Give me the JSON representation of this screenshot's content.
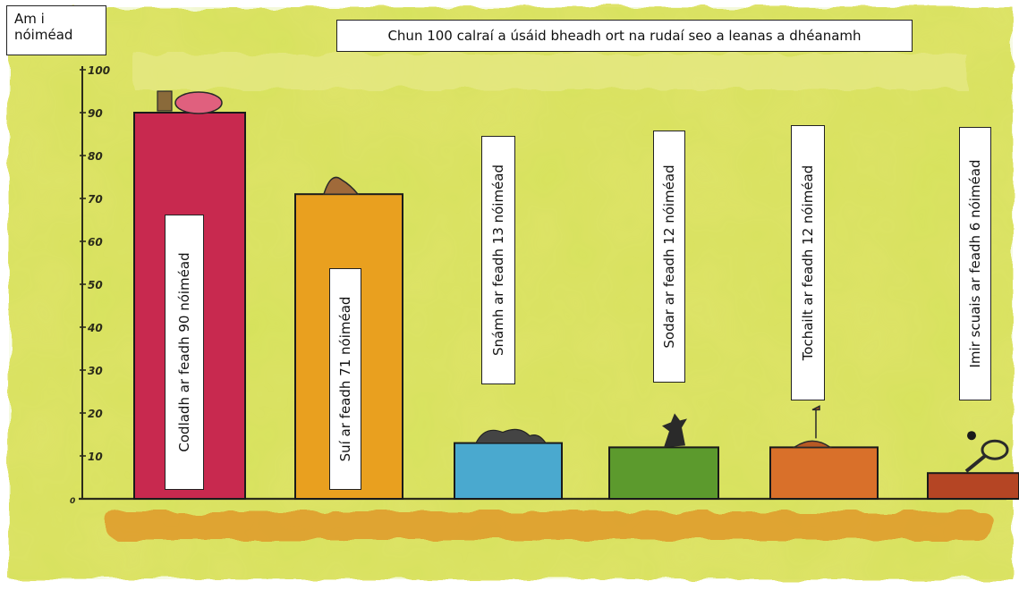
{
  "chart_data": {
    "type": "bar",
    "title": "Chun 100 calraí a úsáid bheadh ort na rudaí seo a leanas a dhéanamh",
    "ylabel": "Am i\nnóiméad",
    "xlabel": "",
    "ylim": [
      0,
      100
    ],
    "yticks": [
      "0",
      "10",
      "20",
      "30",
      "40",
      "50",
      "60",
      "70",
      "80",
      "90",
      "100"
    ],
    "categories": [
      "Codladh ar feadh 90 nóiméad",
      "Suí ar feadh 71 nóiméad",
      "Snámh ar feadh 13 nóiméad",
      "Sodar ar feadh 12 nóiméad",
      "Tochailt ar feadh 12 nóiméad",
      "Imir scuais ar feadh 6 nóiméad"
    ],
    "values": [
      90,
      71,
      13,
      12,
      12,
      6
    ],
    "colors": [
      "#c8294f",
      "#e9a01f",
      "#4aa9cf",
      "#5c9a2d",
      "#d9702a",
      "#b54524"
    ],
    "grid": false,
    "legend": "none",
    "background_color": "#dfe36a"
  }
}
